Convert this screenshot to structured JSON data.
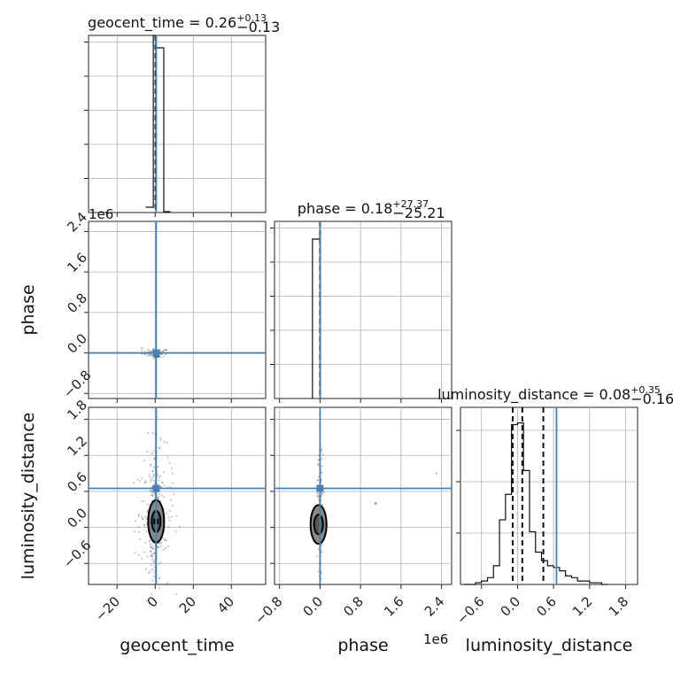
{
  "chart_data": {
    "type": "corner",
    "parameters": [
      "geocent_time",
      "phase",
      "luminosity_distance"
    ],
    "titles": {
      "geocent_time": {
        "name": "geocent_time",
        "median": "0.26",
        "plus": "+0.13",
        "minus": "−0.13"
      },
      "phase": {
        "name": "phase",
        "median": "0.18",
        "plus": "+27.37",
        "minus": "−25.21"
      },
      "luminosity_distance": {
        "name": "luminosity_distance",
        "median": "0.08",
        "plus": "+0.35",
        "minus": "−0.16"
      }
    },
    "offset_text": {
      "phase_y": "1e6",
      "phase_x": "1e6"
    },
    "axes": {
      "geocent_time": {
        "range": [
          -35,
          58
        ],
        "ticks": [
          -20,
          0,
          20,
          40
        ],
        "tick_labels": [
          "−20",
          "0",
          "20",
          "40"
        ],
        "label": "geocent_time"
      },
      "phase": {
        "range": [
          -0.9,
          2.6
        ],
        "ticks": [
          -0.8,
          0.0,
          0.8,
          1.6,
          2.4
        ],
        "tick_labels": [
          "−0.8",
          "0.0",
          "0.8",
          "1.6",
          "2.4"
        ],
        "label": "phase"
      },
      "luminosity_distance": {
        "range": [
          -0.95,
          2.0
        ],
        "ticks": [
          -0.6,
          0.0,
          0.6,
          1.2,
          1.8
        ],
        "tick_labels": [
          "−0.6",
          "0.0",
          "0.6",
          "1.2",
          "1.8"
        ],
        "label": "luminosity_distance"
      }
    },
    "truths": {
      "geocent_time": 0.5,
      "phase": 0.0,
      "luminosity_distance": 0.65
    },
    "quantiles": {
      "geocent_time": [
        0.13,
        0.26,
        0.39
      ],
      "phase": [
        -2e-05,
        0.0,
        3e-05
      ],
      "luminosity_distance": [
        -0.08,
        0.08,
        0.43
      ]
    },
    "hist_geocent_time": {
      "bin_edges": [
        -10,
        -5,
        0,
        5,
        10,
        15
      ],
      "heights": [
        0.03,
        0.0,
        1.0,
        0.0,
        0.0
      ],
      "second_peak": {
        "left": 0.5,
        "right": 4.5,
        "height": 0.93
      }
    },
    "hist_phase": {
      "bin_edges": [
        -0.15,
        -0.05,
        0.0,
        0.05
      ],
      "heights": [
        0.95,
        1.0,
        0.0
      ]
    },
    "hist_luminosity_distance": {
      "bin_edges": [
        -0.9,
        -0.8,
        -0.7,
        -0.6,
        -0.5,
        -0.4,
        -0.3,
        -0.2,
        -0.1,
        0.0,
        0.1,
        0.2,
        0.3,
        0.4,
        0.5,
        0.6,
        0.7,
        0.8,
        0.9,
        1.0,
        1.1,
        1.2,
        1.3,
        1.4,
        1.5
      ],
      "heights": [
        0.0,
        0.0,
        0.01,
        0.02,
        0.04,
        0.11,
        0.38,
        0.53,
        0.94,
        0.95,
        0.67,
        0.31,
        0.19,
        0.14,
        0.11,
        0.1,
        0.08,
        0.05,
        0.04,
        0.02,
        0.02,
        0.01,
        0.01,
        0.0
      ]
    },
    "grid": true
  }
}
